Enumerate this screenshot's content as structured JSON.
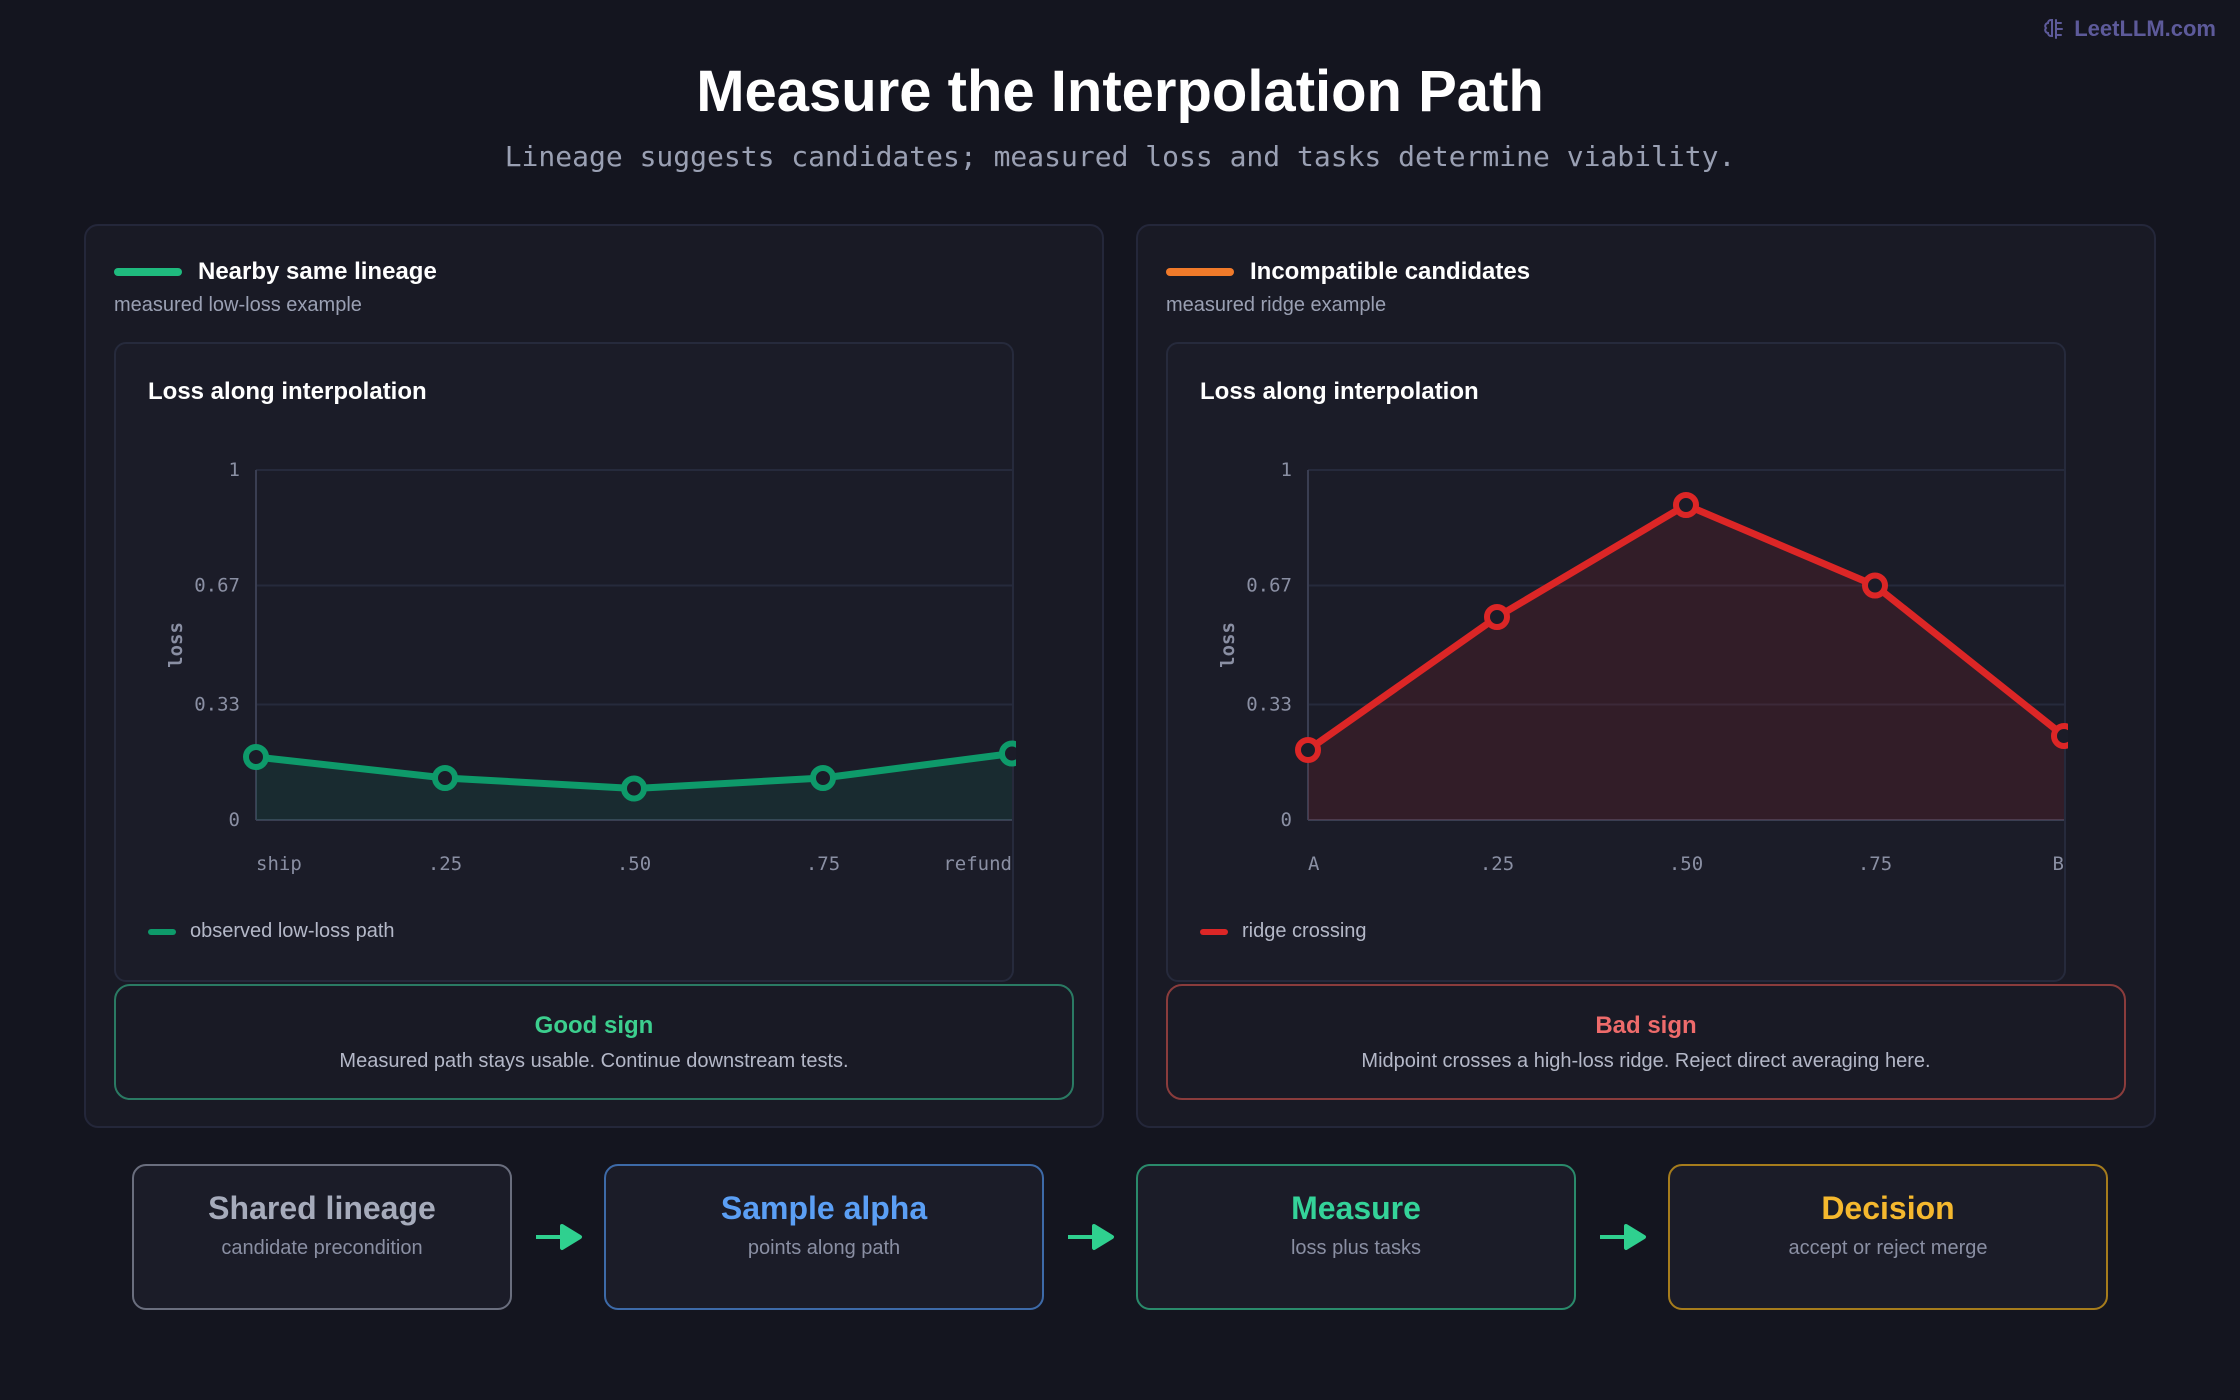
{
  "brand": {
    "name": "LeetLLM.com",
    "icon": "brain-icon"
  },
  "title": "Measure the Interpolation Path",
  "subtitle": "Lineage suggests candidates; measured loss and tasks determine viability.",
  "panels": [
    {
      "heading": "Nearby same lineage",
      "sub": "measured low-loss example",
      "accent": "#1fba7e",
      "verdict_title": "Good sign",
      "verdict_text": "Measured path stays usable. Continue downstream tests.",
      "verdict_color": "#3ccf8e",
      "verdict_border": "#2a7a63"
    },
    {
      "heading": "Incompatible candidates",
      "sub": "measured ridge example",
      "accent": "#f07a2a",
      "verdict_title": "Bad sign",
      "verdict_text": "Midpoint crosses a high-loss ridge. Reject direct averaging here.",
      "verdict_color": "#ee6b6b",
      "verdict_border": "#8a3c3c"
    }
  ],
  "chart_data": [
    {
      "type": "line",
      "title": "Loss along interpolation",
      "ylabel": "loss",
      "xlabel": "",
      "categories": [
        "ship",
        ".25",
        ".50",
        ".75",
        "refund"
      ],
      "yticks": [
        "0",
        "0.33",
        "0.67",
        "1"
      ],
      "ylim": [
        0,
        1
      ],
      "grid": true,
      "legend": "bottom-left",
      "series": [
        {
          "name": "observed low-loss path",
          "color": "#0e9a6a",
          "values": [
            0.18,
            0.12,
            0.09,
            0.12,
            0.19
          ]
        }
      ]
    },
    {
      "type": "line",
      "title": "Loss along interpolation",
      "ylabel": "loss",
      "xlabel": "",
      "categories": [
        "A",
        ".25",
        ".50",
        ".75",
        "B"
      ],
      "yticks": [
        "0",
        "0.33",
        "0.67",
        "1"
      ],
      "ylim": [
        0,
        1
      ],
      "grid": true,
      "legend": "bottom-left",
      "series": [
        {
          "name": "ridge crossing",
          "color": "#dc2626",
          "values": [
            0.2,
            0.58,
            0.9,
            0.67,
            0.24
          ]
        }
      ]
    }
  ],
  "flow": [
    {
      "title": "Shared lineage",
      "sub": "candidate precondition",
      "color": "#a6abbb",
      "border": "#6a6e7e"
    },
    {
      "title": "Sample alpha",
      "sub": "points along path",
      "color": "#5b9ff5",
      "border": "#3d6aa8"
    },
    {
      "title": "Measure",
      "sub": "loss plus tasks",
      "color": "#34d399",
      "border": "#2a8a6b"
    },
    {
      "title": "Decision",
      "sub": "accept or reject merge",
      "color": "#f5b82e",
      "border": "#a67c1c"
    }
  ],
  "arrow_color": "#2fd08f"
}
